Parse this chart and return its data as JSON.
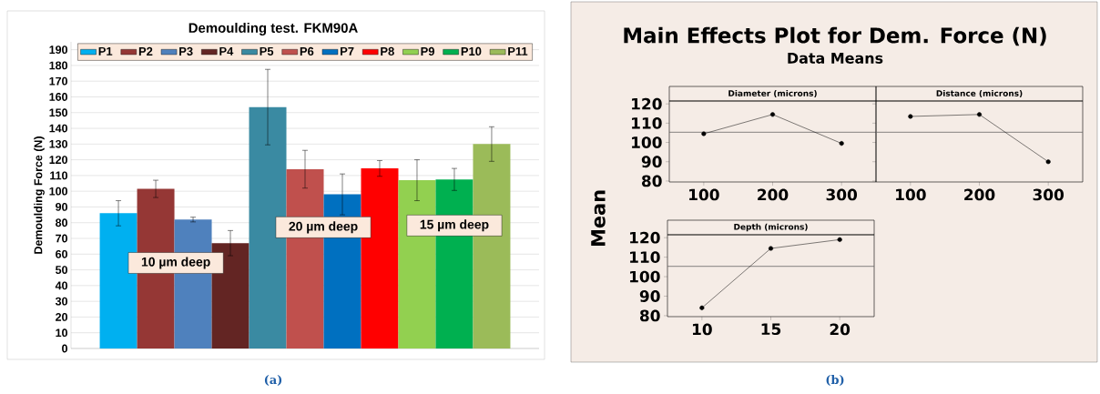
{
  "chart_data": [
    {
      "type": "bar",
      "title": "Demoulding test. FKM90A",
      "ylabel": "Demoulding Force (N)",
      "categories": [
        null
      ],
      "ylim": [
        0,
        195
      ],
      "yticks": [
        0,
        10,
        20,
        30,
        40,
        50,
        60,
        70,
        80,
        90,
        100,
        110,
        120,
        130,
        140,
        150,
        160,
        170,
        180,
        190
      ],
      "grid": "y",
      "legend": "top",
      "annotations": [
        "10 µm deep",
        "20 µm deep",
        "15 µm deep",
        "(a)"
      ],
      "series": [
        {
          "name": "P1",
          "color": "#00b0f0",
          "values": [
            86
          ],
          "errors": [
            8
          ]
        },
        {
          "name": "P2",
          "color": "#953735",
          "values": [
            101.5
          ],
          "errors": [
            5.5
          ]
        },
        {
          "name": "P3",
          "color": "#4f81bd",
          "values": [
            82
          ],
          "errors": [
            1.5
          ]
        },
        {
          "name": "P4",
          "color": "#632523",
          "values": [
            67
          ],
          "errors": [
            8
          ]
        },
        {
          "name": "P5",
          "color": "#3a8aa2",
          "values": [
            153.5
          ],
          "errors": [
            24
          ]
        },
        {
          "name": "P6",
          "color": "#c0504d",
          "values": [
            114
          ],
          "errors": [
            12
          ]
        },
        {
          "name": "P7",
          "color": "#0070c0",
          "values": [
            98
          ],
          "errors": [
            13
          ]
        },
        {
          "name": "P8",
          "color": "#ff0000",
          "values": [
            114.5
          ],
          "errors": [
            5
          ]
        },
        {
          "name": "P9",
          "color": "#92d050",
          "values": [
            107
          ],
          "errors": [
            13
          ]
        },
        {
          "name": "P10",
          "color": "#00b050",
          "values": [
            107.5
          ],
          "errors": [
            7
          ]
        },
        {
          "name": "P11",
          "color": "#9bbb59",
          "values": [
            130
          ],
          "errors": [
            11
          ]
        }
      ]
    },
    {
      "type": "line",
      "title": "Main Effects Plot for Dem. Force (N)",
      "subtitle": "Data Means",
      "ylabel": "Mean",
      "xlabel": "Diameter (microns)",
      "categories": [
        "100",
        "200",
        "300"
      ],
      "values": [
        104.5,
        114.5,
        99.5
      ],
      "color": "#000000",
      "marker": "circle",
      "ylim": [
        79.5,
        121.5
      ],
      "yticks": [
        80,
        90,
        100,
        110,
        120
      ],
      "ref_lines": [
        {
          "axis": "y",
          "value": 105.3
        }
      ],
      "annotations": [
        "(b)"
      ]
    },
    {
      "type": "line",
      "xlabel": "Distance (microns)",
      "categories": [
        "100",
        "200",
        "300"
      ],
      "values": [
        113.5,
        114.5,
        90
      ],
      "color": "#000000",
      "marker": "circle",
      "ylim": [
        79.5,
        121.5
      ],
      "yticks": [
        80,
        90,
        100,
        110,
        120
      ],
      "ref_lines": [
        {
          "axis": "y",
          "value": 105.3
        }
      ],
      "tick_labels": "x"
    },
    {
      "type": "line",
      "xlabel": "Depth (microns)",
      "categories": [
        "10",
        "15",
        "20"
      ],
      "values": [
        84,
        114.5,
        119
      ],
      "color": "#000000",
      "marker": "circle",
      "ylim": [
        79.5,
        121.5
      ],
      "yticks": [
        80,
        90,
        100,
        110,
        120
      ],
      "ref_lines": [
        {
          "axis": "y",
          "value": 105.3
        }
      ]
    }
  ]
}
